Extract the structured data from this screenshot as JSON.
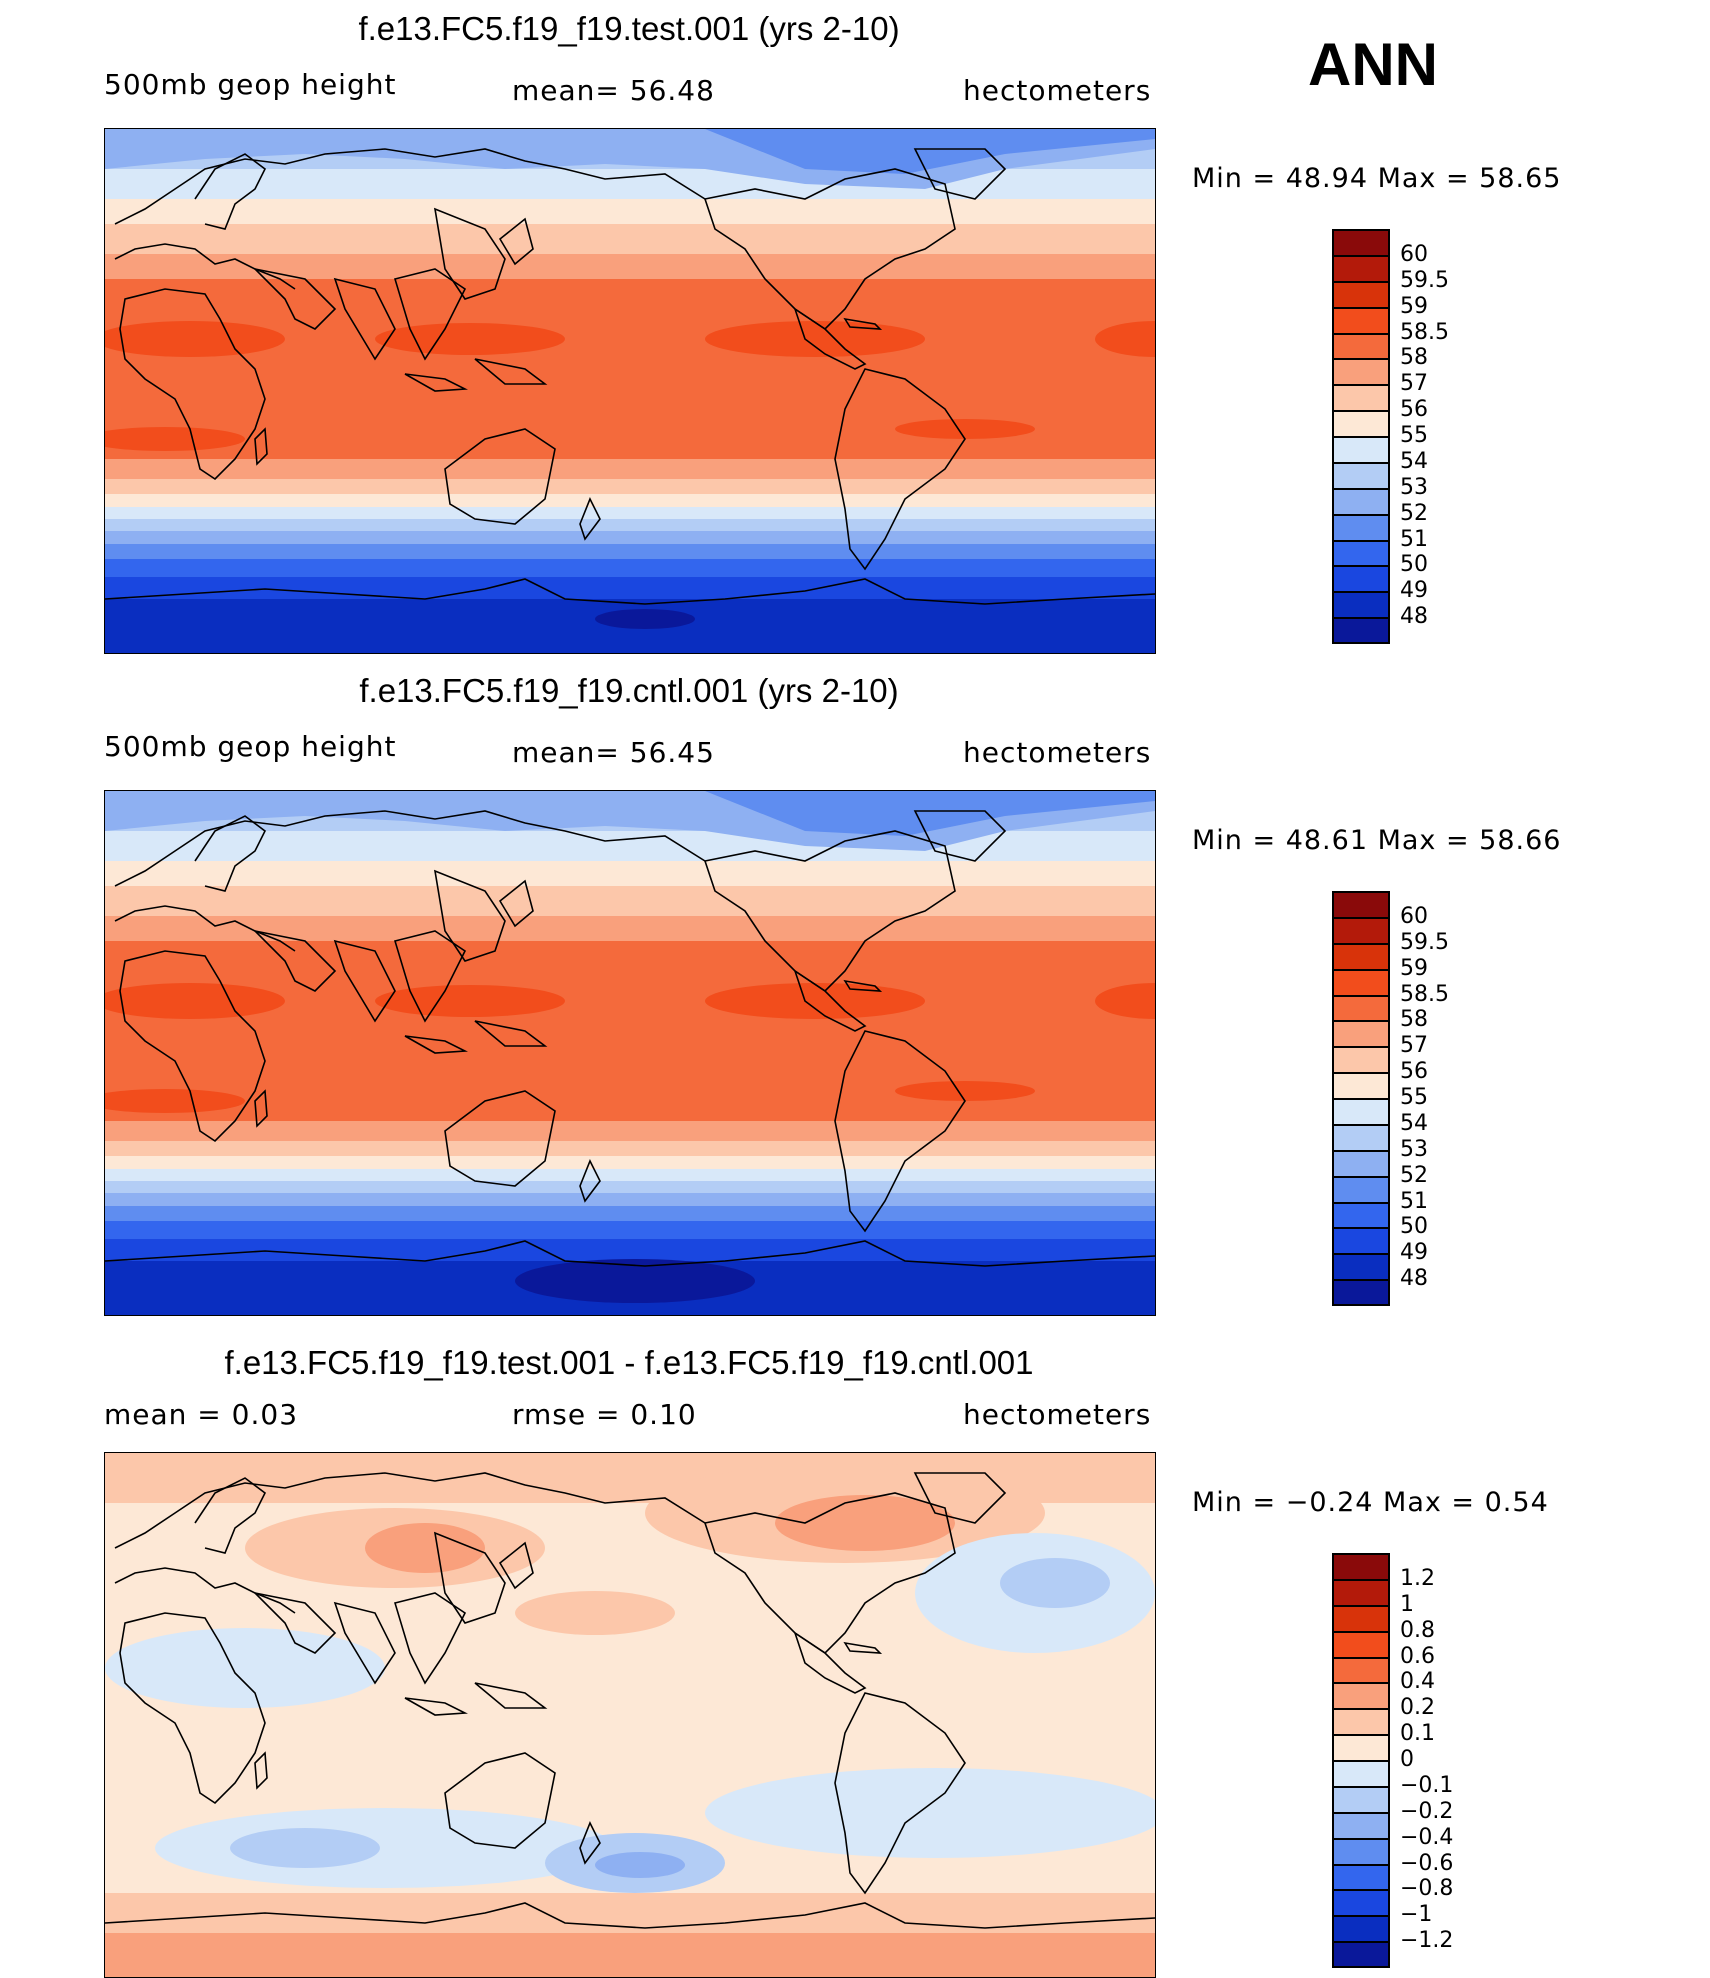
{
  "season": "ANN",
  "panels": [
    {
      "id": "test",
      "title": "f.e13.FC5.f19_f19.test.001 (yrs 2-10)",
      "left_label": "500mb geop height",
      "center_label": "mean=   56.48",
      "units": "hectometers",
      "minmax": "Min  =    48.94  Max  =    58.65",
      "colorbar": {
        "colors": [
          "#8a0a0a",
          "#b31a0a",
          "#d8330a",
          "#f24d1c",
          "#f46a3c",
          "#f9a07c",
          "#fcc7aa",
          "#fde8d6",
          "#d8e8f9",
          "#b3cdf5",
          "#8eb0f2",
          "#5f8df0",
          "#3366ee",
          "#1a47e0",
          "#0a2ec0",
          "#0a189a"
        ],
        "labels": [
          "60",
          "59.5",
          "59",
          "58.5",
          "58",
          "57",
          "56",
          "55",
          "54",
          "53",
          "52",
          "51",
          "50",
          "49",
          "48"
        ]
      }
    },
    {
      "id": "cntl",
      "title": "f.e13.FC5.f19_f19.cntl.001 (yrs 2-10)",
      "left_label": "500mb geop height",
      "center_label": "mean=   56.45",
      "units": "hectometers",
      "minmax": "Min  =    48.61  Max  =    58.66",
      "colorbar": {
        "colors": [
          "#8a0a0a",
          "#b31a0a",
          "#d8330a",
          "#f24d1c",
          "#f46a3c",
          "#f9a07c",
          "#fcc7aa",
          "#fde8d6",
          "#d8e8f9",
          "#b3cdf5",
          "#8eb0f2",
          "#5f8df0",
          "#3366ee",
          "#1a47e0",
          "#0a2ec0",
          "#0a189a"
        ],
        "labels": [
          "60",
          "59.5",
          "59",
          "58.5",
          "58",
          "57",
          "56",
          "55",
          "54",
          "53",
          "52",
          "51",
          "50",
          "49",
          "48"
        ]
      }
    },
    {
      "id": "diff",
      "title": "f.e13.FC5.f19_f19.test.001 - f.e13.FC5.f19_f19.cntl.001",
      "left_label": "mean =      0.03",
      "center_label": "rmse =     0.10",
      "units": "hectometers",
      "minmax": "Min  =    −0.24  Max  =      0.54",
      "colorbar": {
        "colors": [
          "#8a0a0a",
          "#b31a0a",
          "#d8330a",
          "#f24d1c",
          "#f46a3c",
          "#f9a07c",
          "#fcc7aa",
          "#fde8d6",
          "#d8e8f9",
          "#b3cdf5",
          "#8eb0f2",
          "#5f8df0",
          "#3366ee",
          "#1a47e0",
          "#0a2ec0",
          "#0a189a"
        ],
        "labels": [
          "1.2",
          "1",
          "0.8",
          "0.6",
          "0.4",
          "0.2",
          "0.1",
          "0",
          "−0.1",
          "−0.2",
          "−0.4",
          "−0.6",
          "−0.8",
          "−1",
          "−1.2"
        ]
      }
    }
  ],
  "field_colors": {
    "height": [
      "#0a2ec0",
      "#1a47e0",
      "#3366ee",
      "#5f8df0",
      "#8eb0f2",
      "#b3cdf5",
      "#d8e8f9",
      "#fde8d6",
      "#fcc7aa",
      "#f9a07c",
      "#f46a3c",
      "#f24d1c"
    ],
    "diff_base": "#fde8d6",
    "diff_pos": "#fcc7aa",
    "diff_pos2": "#f9a07c",
    "diff_neg": "#d8e8f9",
    "diff_neg2": "#b3cdf5",
    "diff_neg3": "#8eb0f2"
  }
}
